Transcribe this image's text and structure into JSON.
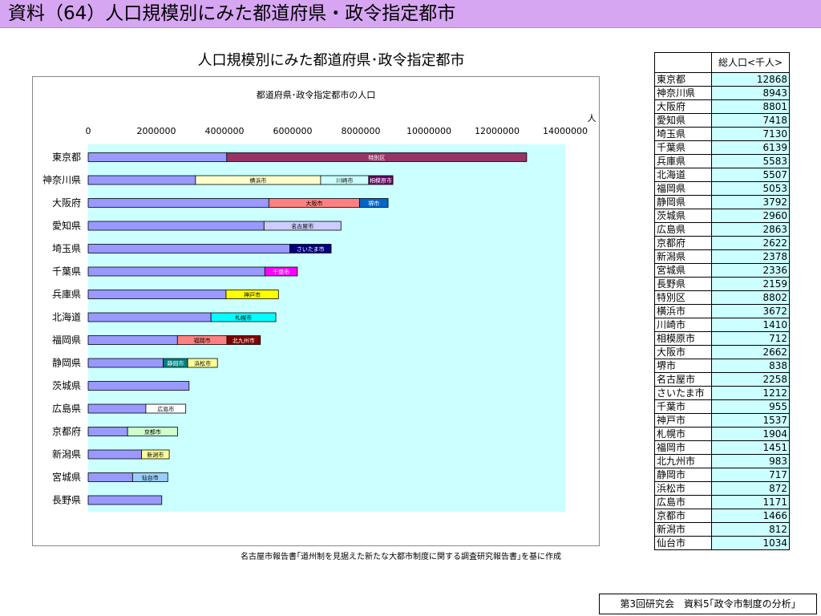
{
  "header": {
    "title": "資料（64）人口規模別にみた都道府県・政令指定都市"
  },
  "main_title": "人口規模別にみた都道府県･政令指定都市",
  "source_note": "名古屋市報告書｢道州制を見据えた新たな大都市制度に関する調査研究報告書｣を基に作成",
  "footer": "第3回研究会　資料5｢政令市制度の分析｣",
  "colors": {
    "base": "#9999ff",
    "特別区": "#993366",
    "横浜市": "#ffffcc",
    "川崎市": "#ccffff",
    "相模原市": "#660066",
    "大阪市": "#ff8080",
    "堺市": "#0066cc",
    "名古屋市": "#ccccff",
    "さいたま市": "#000080",
    "千葉市": "#ff00ff",
    "神戸市": "#ffff00",
    "札幌市": "#00ffff",
    "福岡市": "#ff8080",
    "北九州市": "#800000",
    "静岡市": "#008080",
    "浜松市": "#ffff99",
    "広島市": "#ffffff",
    "京都市": "#ccffcc",
    "新潟市": "#ffff99",
    "仙台市": "#99ccff",
    "plot_area": "#ccffff",
    "table_value_bg": "#ccffff"
  },
  "chart_data": {
    "type": "bar",
    "orientation": "horizontal",
    "stacked": true,
    "title": "都道府県･政令指定都市の人口",
    "unit_label": "人",
    "xlim": [
      0,
      14000000
    ],
    "xticks": [
      "0",
      "2000000",
      "4000000",
      "6000000",
      "8000000",
      "10000000",
      "12000000",
      "14000000"
    ],
    "xtick_values": [
      0,
      2000000,
      4000000,
      6000000,
      8000000,
      10000000,
      12000000,
      14000000
    ],
    "xaxis_position": "top",
    "categories": [
      "東京都",
      "神奈川県",
      "大阪府",
      "愛知県",
      "埼玉県",
      "千葉県",
      "兵庫県",
      "北海道",
      "福岡県",
      "静岡県",
      "茨城県",
      "広島県",
      "京都府",
      "新潟県",
      "宮城県",
      "長野県"
    ],
    "bars": [
      {
        "category": "東京都",
        "total": 12868000,
        "cities": [
          {
            "name": "特別区",
            "value": 8802000
          }
        ]
      },
      {
        "category": "神奈川県",
        "total": 8943000,
        "cities": [
          {
            "name": "横浜市",
            "value": 3672000
          },
          {
            "name": "川崎市",
            "value": 1410000
          },
          {
            "name": "相模原市",
            "value": 712000
          }
        ]
      },
      {
        "category": "大阪府",
        "total": 8801000,
        "cities": [
          {
            "name": "大阪市",
            "value": 2662000
          },
          {
            "name": "堺市",
            "value": 838000
          }
        ]
      },
      {
        "category": "愛知県",
        "total": 7418000,
        "cities": [
          {
            "name": "名古屋市",
            "value": 2258000
          }
        ]
      },
      {
        "category": "埼玉県",
        "total": 7130000,
        "cities": [
          {
            "name": "さいたま市",
            "value": 1212000
          }
        ]
      },
      {
        "category": "千葉県",
        "total": 6139000,
        "cities": [
          {
            "name": "千葉市",
            "value": 955000
          }
        ]
      },
      {
        "category": "兵庫県",
        "total": 5583000,
        "cities": [
          {
            "name": "神戸市",
            "value": 1537000
          }
        ]
      },
      {
        "category": "北海道",
        "total": 5507000,
        "cities": [
          {
            "name": "札幌市",
            "value": 1904000
          }
        ]
      },
      {
        "category": "福岡県",
        "total": 5053000,
        "cities": [
          {
            "name": "福岡市",
            "value": 1451000
          },
          {
            "name": "北九州市",
            "value": 983000
          }
        ]
      },
      {
        "category": "静岡県",
        "total": 3792000,
        "cities": [
          {
            "name": "静岡市",
            "value": 717000
          },
          {
            "name": "浜松市",
            "value": 872000
          }
        ]
      },
      {
        "category": "茨城県",
        "total": 2960000,
        "cities": []
      },
      {
        "category": "広島県",
        "total": 2863000,
        "cities": [
          {
            "name": "広島市",
            "value": 1171000
          }
        ]
      },
      {
        "category": "京都府",
        "total": 2622000,
        "cities": [
          {
            "name": "京都市",
            "value": 1466000
          }
        ]
      },
      {
        "category": "新潟県",
        "total": 2378000,
        "cities": [
          {
            "name": "新潟市",
            "value": 812000
          }
        ]
      },
      {
        "category": "宮城県",
        "total": 2336000,
        "cities": [
          {
            "name": "仙台市",
            "value": 1034000
          }
        ]
      },
      {
        "category": "長野県",
        "total": 2159000,
        "cities": []
      }
    ],
    "grid": false
  },
  "table": {
    "header_label": "総人口<千人>",
    "rows": [
      [
        "東京都",
        "12868"
      ],
      [
        "神奈川県",
        "8943"
      ],
      [
        "大阪府",
        "8801"
      ],
      [
        "愛知県",
        "7418"
      ],
      [
        "埼玉県",
        "7130"
      ],
      [
        "千葉県",
        "6139"
      ],
      [
        "兵庫県",
        "5583"
      ],
      [
        "北海道",
        "5507"
      ],
      [
        "福岡県",
        "5053"
      ],
      [
        "静岡県",
        "3792"
      ],
      [
        "茨城県",
        "2960"
      ],
      [
        "広島県",
        "2863"
      ],
      [
        "京都府",
        "2622"
      ],
      [
        "新潟県",
        "2378"
      ],
      [
        "宮城県",
        "2336"
      ],
      [
        "長野県",
        "2159"
      ],
      [
        "特別区",
        "8802"
      ],
      [
        "横浜市",
        "3672"
      ],
      [
        "川崎市",
        "1410"
      ],
      [
        "相模原市",
        "712"
      ],
      [
        "大阪市",
        "2662"
      ],
      [
        "堺市",
        "838"
      ],
      [
        "名古屋市",
        "2258"
      ],
      [
        "さいたま市",
        "1212"
      ],
      [
        "千葉市",
        "955"
      ],
      [
        "神戸市",
        "1537"
      ],
      [
        "札幌市",
        "1904"
      ],
      [
        "福岡市",
        "1451"
      ],
      [
        "北九州市",
        "983"
      ],
      [
        "静岡市",
        "717"
      ],
      [
        "浜松市",
        "872"
      ],
      [
        "広島市",
        "1171"
      ],
      [
        "京都市",
        "1466"
      ],
      [
        "新潟市",
        "812"
      ],
      [
        "仙台市",
        "1034"
      ]
    ]
  }
}
